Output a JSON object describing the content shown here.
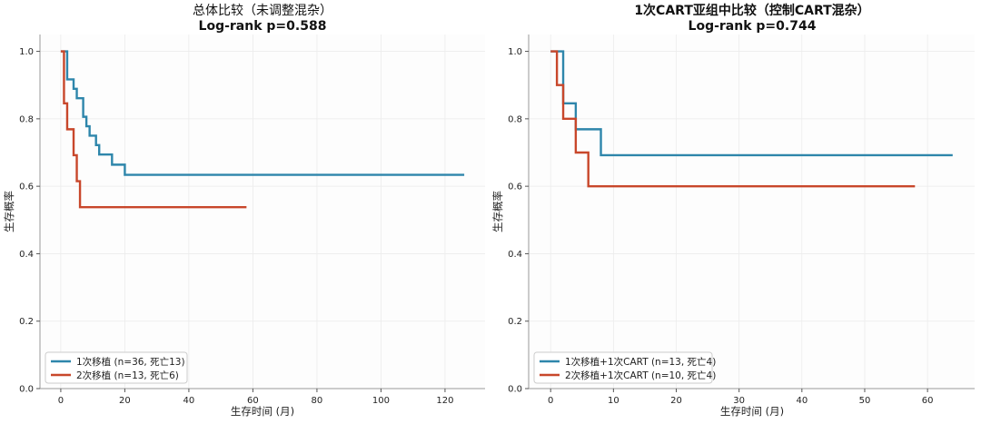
{
  "chart_data": [
    {
      "type": "line",
      "step": true,
      "title": "总体比较（未调整混杂）",
      "subtitle": "Log-rank p=0.588",
      "xlabel": "生存时间 (月)",
      "ylabel": "生存概率",
      "xlim": [
        -6.5,
        132.5
      ],
      "ylim": [
        0,
        1.05
      ],
      "xticks": [
        0,
        20,
        40,
        60,
        80,
        100,
        120
      ],
      "yticks": [
        0.0,
        0.2,
        0.4,
        0.6,
        0.8,
        1.0
      ],
      "grid": true,
      "legend_position": "lower-left",
      "series": [
        {
          "name": "1次移植 (n=36, 死亡13)",
          "color": "#2e86ab",
          "x": [
            0,
            2,
            4,
            5,
            7,
            8,
            9,
            11,
            12,
            16,
            20,
            126
          ],
          "y": [
            1.0,
            0.917,
            0.889,
            0.861,
            0.806,
            0.778,
            0.75,
            0.722,
            0.694,
            0.664,
            0.634,
            0.634
          ]
        },
        {
          "name": "2次移植 (n=13, 死亡6)",
          "color": "#c8472b",
          "x": [
            0,
            1,
            2,
            4,
            5,
            6,
            58
          ],
          "y": [
            1.0,
            0.846,
            0.769,
            0.692,
            0.615,
            0.538,
            0.538
          ]
        }
      ]
    },
    {
      "type": "line",
      "step": true,
      "title": "1次CART亚组中比较（控制CART混杂）",
      "subtitle": "Log-rank p=0.744",
      "xlabel": "生存时间 (月)",
      "ylabel": "生存概率",
      "xlim": [
        -3.5,
        67.5
      ],
      "ylim": [
        0,
        1.05
      ],
      "xticks": [
        0,
        10,
        20,
        30,
        40,
        50,
        60
      ],
      "yticks": [
        0.0,
        0.2,
        0.4,
        0.6,
        0.8,
        1.0
      ],
      "grid": true,
      "legend_position": "lower-left",
      "series": [
        {
          "name": "1次移植+1次CART (n=13, 死亡4)",
          "color": "#2e86ab",
          "x": [
            0,
            2,
            4,
            8,
            64
          ],
          "y": [
            1.0,
            0.846,
            0.769,
            0.692,
            0.692
          ]
        },
        {
          "name": "2次移植+1次CART (n=10, 死亡4)",
          "color": "#c8472b",
          "x": [
            0,
            1,
            2,
            4,
            6,
            58
          ],
          "y": [
            1.0,
            0.9,
            0.8,
            0.7,
            0.6,
            0.6
          ]
        }
      ]
    }
  ]
}
